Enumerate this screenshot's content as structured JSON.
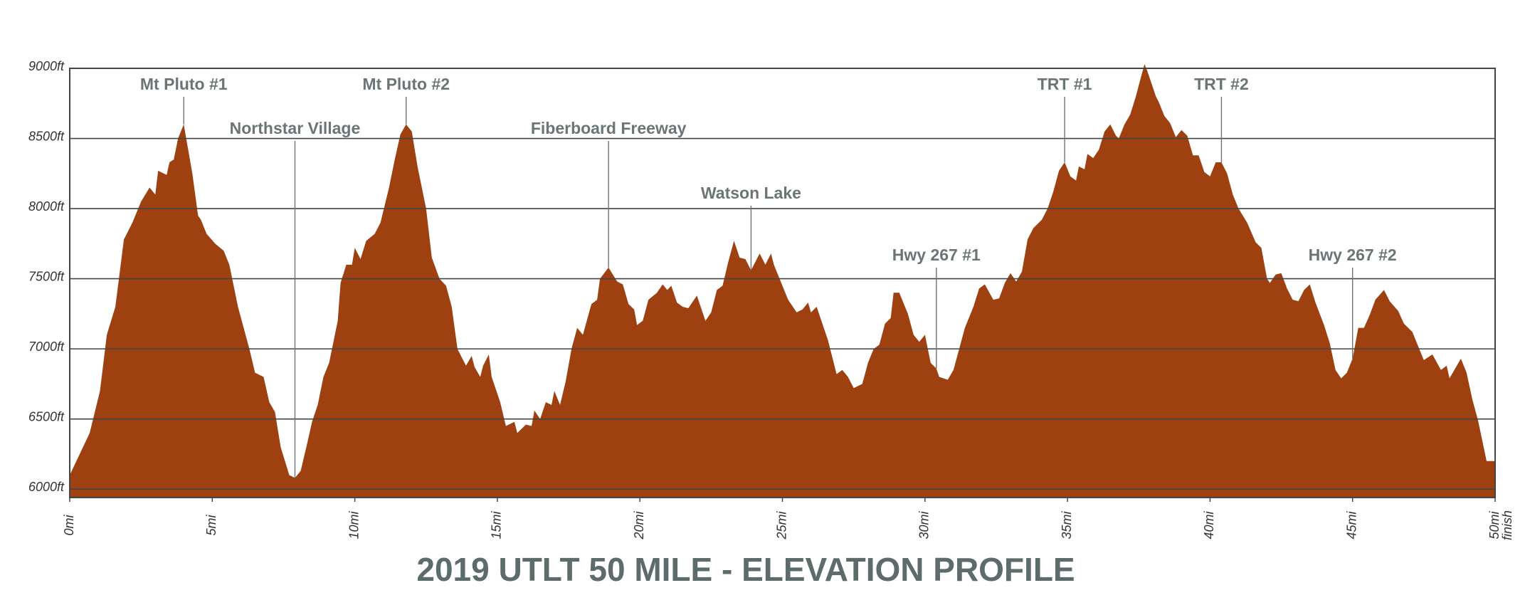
{
  "chart_data": {
    "type": "area",
    "title": "2019 UTLT 50 MILE - ELEVATION PROFILE",
    "color": "#9e4010",
    "xlim": [
      0,
      50
    ],
    "ylim": [
      5940,
      9000
    ],
    "xticks": [
      {
        "value": 0,
        "label": "0mi"
      },
      {
        "value": 5,
        "label": "5mi"
      },
      {
        "value": 10,
        "label": "10mi"
      },
      {
        "value": 15,
        "label": "15mi"
      },
      {
        "value": 20,
        "label": "20mi"
      },
      {
        "value": 25,
        "label": "25mi"
      },
      {
        "value": 30,
        "label": "30mi"
      },
      {
        "value": 35,
        "label": "35mi"
      },
      {
        "value": 40,
        "label": "40mi"
      },
      {
        "value": 45,
        "label": "45mi"
      },
      {
        "value": 50,
        "label": "50mi"
      }
    ],
    "x_end_note": "finish",
    "yticks": [
      {
        "value": 6000,
        "label": "6000ft"
      },
      {
        "value": 6500,
        "label": "6500ft"
      },
      {
        "value": 7000,
        "label": "7000ft"
      },
      {
        "value": 7500,
        "label": "7500ft"
      },
      {
        "value": 8000,
        "label": "8000ft"
      },
      {
        "value": 8500,
        "label": "8500ft"
      },
      {
        "value": 9000,
        "label": "9000ft"
      }
    ],
    "grid": true,
    "x": [
      0,
      0.7,
      1.06,
      1.3,
      1.6,
      1.9,
      2.2,
      2.5,
      2.8,
      3.0,
      3.1,
      3.4,
      3.5,
      3.65,
      3.8,
      4.0,
      4.3,
      4.5,
      4.6,
      4.8,
      5.1,
      5.4,
      5.6,
      5.9,
      6.3,
      6.5,
      6.8,
      7.0,
      7.2,
      7.4,
      7.7,
      7.9,
      8.1,
      8.3,
      8.5,
      8.7,
      8.9,
      9.1,
      9.4,
      9.5,
      9.7,
      9.9,
      10.0,
      10.2,
      10.4,
      10.7,
      10.9,
      11.2,
      11.4,
      11.6,
      11.8,
      12.0,
      12.2,
      12.5,
      12.7,
      12.97,
      13.2,
      13.4,
      13.6,
      13.9,
      14.1,
      14.2,
      14.4,
      14.5,
      14.7,
      14.8,
      15.1,
      15.3,
      15.6,
      15.7,
      16.0,
      16.2,
      16.3,
      16.5,
      16.7,
      16.9,
      17.0,
      17.2,
      17.4,
      17.6,
      17.8,
      18.0,
      18.3,
      18.5,
      18.6,
      18.9,
      19.2,
      19.4,
      19.6,
      19.8,
      19.9,
      20.1,
      20.3,
      20.6,
      20.8,
      20.96,
      21.1,
      21.3,
      21.5,
      21.7,
      22.0,
      22.3,
      22.5,
      22.7,
      22.9,
      23.1,
      23.3,
      23.5,
      23.7,
      23.9,
      24.2,
      24.4,
      24.6,
      24.7,
      24.9,
      25.2,
      25.5,
      25.7,
      25.9,
      26.0,
      26.2,
      26.4,
      26.6,
      26.9,
      27.1,
      27.3,
      27.5,
      27.8,
      28.0,
      28.2,
      28.4,
      28.6,
      28.8,
      28.9,
      29.1,
      29.4,
      29.6,
      29.8,
      30.0,
      30.2,
      30.4,
      30.5,
      30.8,
      31.0,
      31.2,
      31.4,
      31.7,
      31.9,
      32.1,
      32.4,
      32.6,
      32.8,
      33.0,
      33.2,
      33.4,
      33.6,
      33.8,
      34.1,
      34.3,
      34.5,
      34.7,
      34.9,
      35.1,
      35.3,
      35.4,
      35.6,
      35.7,
      35.9,
      36.1,
      36.3,
      36.5,
      36.7,
      36.8,
      37.0,
      37.2,
      37.4,
      37.5,
      37.7,
      37.8,
      38.1,
      38.2,
      38.4,
      38.6,
      38.8,
      39.0,
      39.2,
      39.4,
      39.6,
      39.8,
      40.0,
      40.2,
      40.4,
      40.6,
      40.8,
      41.0,
      41.3,
      41.6,
      41.8,
      42.0,
      42.1,
      42.3,
      42.5,
      42.7,
      42.9,
      43.1,
      43.3,
      43.5,
      43.7,
      44.0,
      44.2,
      44.4,
      44.6,
      44.8,
      45.0,
      45.2,
      45.4,
      45.6,
      45.8,
      46.1,
      46.3,
      46.6,
      46.8,
      47.1,
      47.3,
      47.5,
      47.8,
      48.1,
      48.3,
      48.4,
      48.6,
      48.8,
      49.0,
      49.2,
      49.4,
      49.7,
      50.0
    ],
    "values": [
      6100,
      6400,
      6700,
      7100,
      7300,
      7780,
      7900,
      8050,
      8150,
      8100,
      8270,
      8240,
      8330,
      8350,
      8500,
      8600,
      8250,
      7950,
      7920,
      7820,
      7750,
      7700,
      7600,
      7300,
      7000,
      6830,
      6800,
      6620,
      6550,
      6300,
      6100,
      6080,
      6130,
      6300,
      6480,
      6600,
      6800,
      6900,
      7200,
      7470,
      7600,
      7600,
      7720,
      7640,
      7770,
      7820,
      7900,
      8150,
      8350,
      8530,
      8600,
      8550,
      8300,
      8000,
      7650,
      7500,
      7450,
      7300,
      7000,
      6880,
      6950,
      6870,
      6800,
      6880,
      6960,
      6800,
      6620,
      6450,
      6480,
      6400,
      6460,
      6450,
      6560,
      6500,
      6620,
      6600,
      6700,
      6600,
      6770,
      7000,
      7150,
      7100,
      7320,
      7350,
      7500,
      7580,
      7480,
      7460,
      7320,
      7280,
      7170,
      7200,
      7350,
      7400,
      7460,
      7420,
      7450,
      7330,
      7300,
      7290,
      7380,
      7200,
      7260,
      7420,
      7450,
      7620,
      7770,
      7650,
      7640,
      7560,
      7680,
      7600,
      7680,
      7600,
      7500,
      7350,
      7260,
      7280,
      7330,
      7260,
      7300,
      7180,
      7060,
      6820,
      6850,
      6800,
      6720,
      6750,
      6900,
      7000,
      7030,
      7180,
      7220,
      7400,
      7400,
      7250,
      7100,
      7050,
      7100,
      6900,
      6860,
      6800,
      6780,
      6850,
      7000,
      7150,
      7300,
      7430,
      7460,
      7350,
      7360,
      7470,
      7540,
      7480,
      7550,
      7780,
      7860,
      7920,
      8000,
      8120,
      8270,
      8330,
      8230,
      8200,
      8300,
      8280,
      8390,
      8360,
      8420,
      8550,
      8600,
      8520,
      8500,
      8600,
      8670,
      8800,
      8880,
      9030,
      8980,
      8800,
      8760,
      8660,
      8610,
      8510,
      8560,
      8520,
      8380,
      8380,
      8260,
      8230,
      8330,
      8330,
      8250,
      8100,
      8000,
      7900,
      7760,
      7720,
      7500,
      7470,
      7530,
      7540,
      7430,
      7350,
      7340,
      7420,
      7460,
      7330,
      7170,
      7040,
      6850,
      6790,
      6830,
      6930,
      7150,
      7150,
      7240,
      7350,
      7420,
      7340,
      7270,
      7180,
      7120,
      7020,
      6920,
      6960,
      6850,
      6880,
      6790,
      6860,
      6930,
      6830,
      6640,
      6490,
      6200,
      6200
    ],
    "annotations": [
      {
        "text": "Mt Pluto #1",
        "x": 4.0,
        "y": 8600
      },
      {
        "text": "Northstar Village",
        "x": 7.9,
        "y": 6080
      },
      {
        "text": "Mt Pluto #2",
        "x": 11.8,
        "y": 8600
      },
      {
        "text": "Fiberboard Freeway",
        "x": 18.9,
        "y": 7580
      },
      {
        "text": "Watson Lake",
        "x": 23.9,
        "y": 7560
      },
      {
        "text": "Hwy 267 #1",
        "x": 30.4,
        "y": 6860
      },
      {
        "text": "TRT #1",
        "x": 34.9,
        "y": 8330
      },
      {
        "text": "TRT #2",
        "x": 40.4,
        "y": 8330
      },
      {
        "text": "Hwy 267 #2",
        "x": 45.0,
        "y": 6930
      }
    ]
  }
}
